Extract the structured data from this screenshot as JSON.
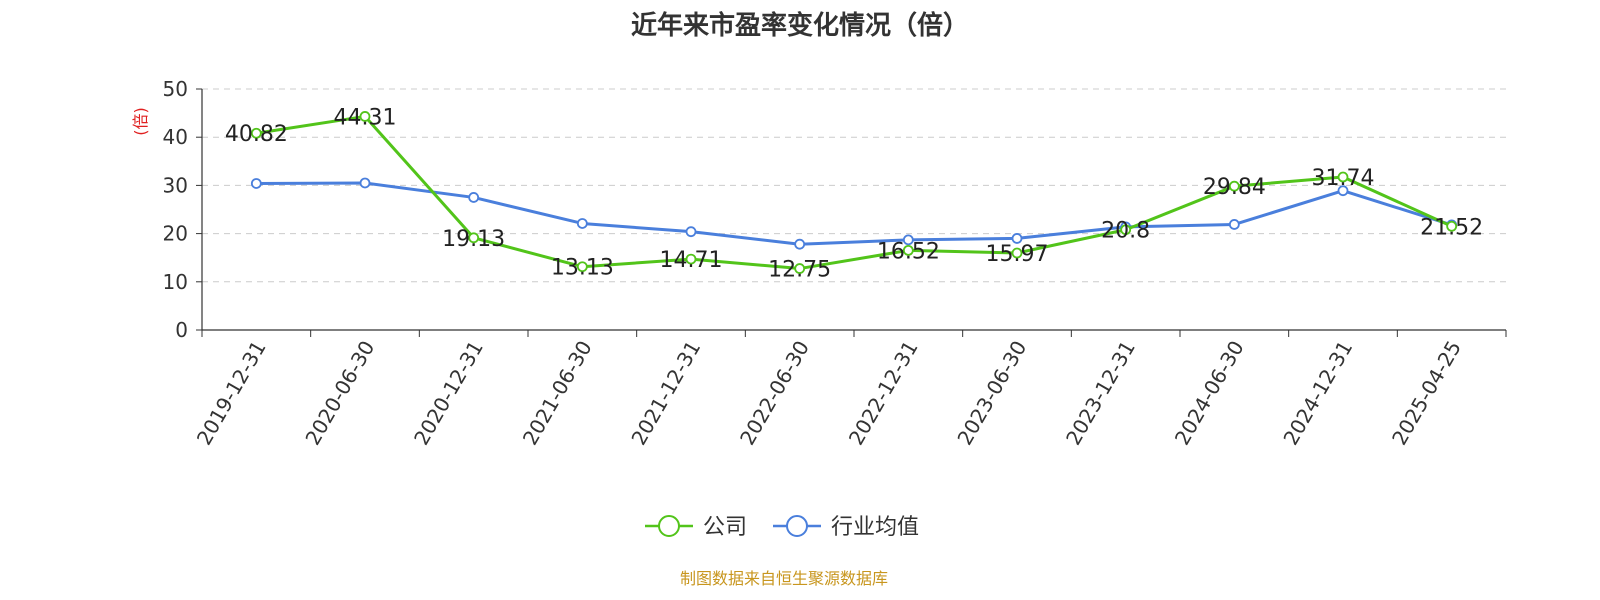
{
  "chart_data": {
    "type": "line",
    "title": "近年来市盈率变化情况（倍）",
    "ylabel": "(倍)",
    "ylim": [
      0,
      50
    ],
    "yticks": [
      0,
      10,
      20,
      30,
      40,
      50
    ],
    "grid": true,
    "categories": [
      "2019-12-31",
      "2020-06-30",
      "2020-12-31",
      "2021-06-30",
      "2021-12-31",
      "2022-06-30",
      "2022-12-31",
      "2023-06-30",
      "2023-12-31",
      "2024-06-30",
      "2024-12-31",
      "2025-04-25"
    ],
    "series": [
      {
        "name": "公司",
        "color": "#52c41a",
        "values": [
          40.82,
          44.31,
          19.13,
          13.13,
          14.71,
          12.75,
          16.52,
          15.97,
          20.8,
          29.84,
          31.74,
          21.52
        ],
        "labels": [
          "40.82",
          "44.31",
          "19.13",
          "13.13",
          "14.71",
          "12.75",
          "16.52",
          "15.97",
          "20.8",
          "29.84",
          "31.74",
          "21.52"
        ]
      },
      {
        "name": "行业均值",
        "color": "#4a7fdc",
        "values": [
          30.4,
          30.5,
          27.5,
          22.1,
          20.4,
          17.8,
          18.7,
          19.0,
          21.4,
          21.9,
          28.9,
          21.8
        ]
      }
    ],
    "legend_position": "bottom",
    "source": "制图数据来自恒生聚源数据库",
    "ylabel_color": "#e02020",
    "source_color": "#c8961e"
  }
}
